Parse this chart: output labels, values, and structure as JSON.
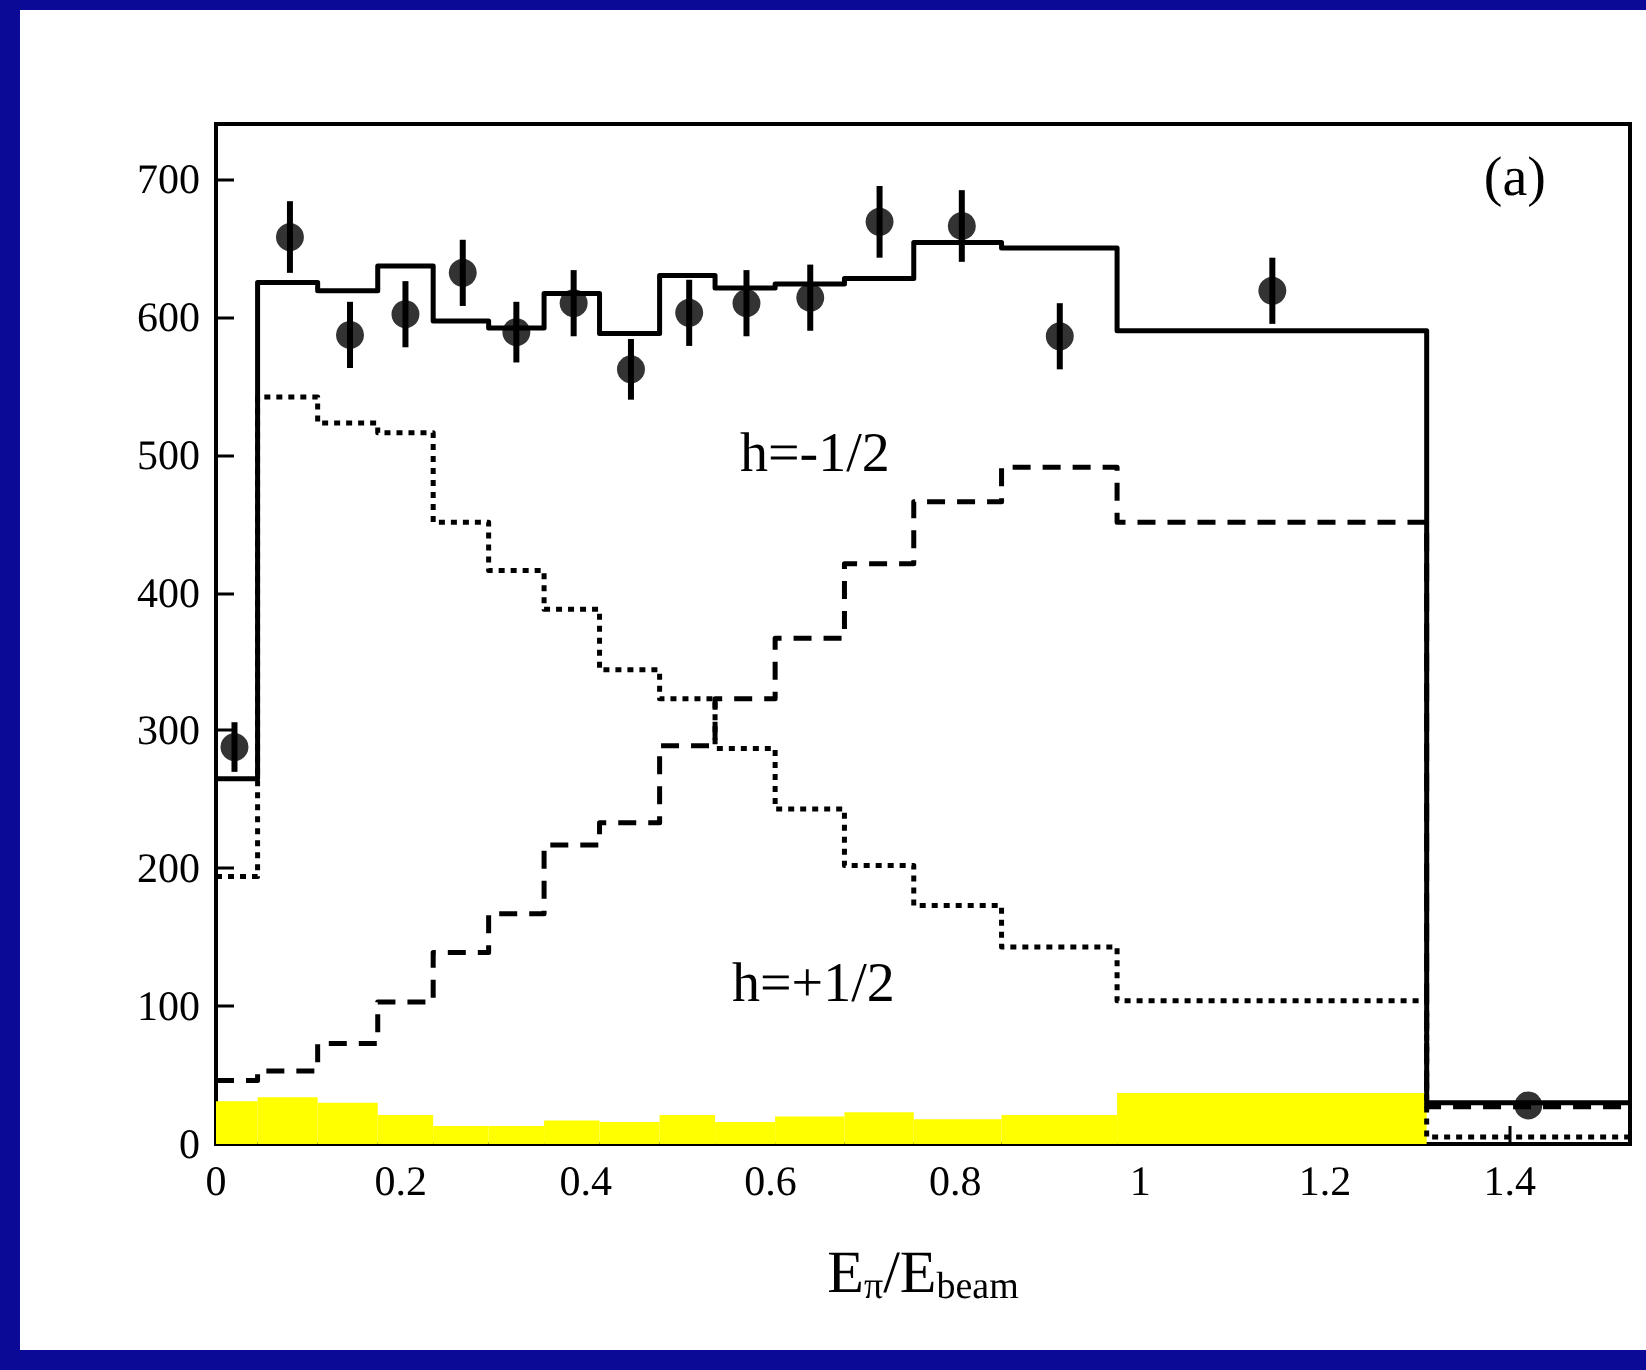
{
  "chart_data": {
    "type": "histogram",
    "xlabel": "E$_{π}$/E$_{beam}$",
    "bins": [
      0,
      0.045,
      0.11,
      0.175,
      0.235,
      0.295,
      0.355,
      0.415,
      0.48,
      0.54,
      0.605,
      0.68,
      0.755,
      0.85,
      0.975,
      1.31
    ],
    "series": [
      {
        "color": "#ffff00",
        "values": [
          31,
          34,
          30,
          21,
          13,
          13,
          17,
          16,
          21,
          16,
          20,
          23,
          18,
          21,
          37
        ]
      },
      {
        "type": "step",
        "color": "#000000",
        "line_style": "solid",
        "x": [
          0,
          0.045,
          0.11,
          0.175,
          0.235,
          0.295,
          0.355,
          0.415,
          0.48,
          0.54,
          0.605,
          0.68,
          0.755,
          0.85,
          0.975,
          1.31,
          1.53
        ],
        "values": [
          265,
          625,
          619,
          637,
          597,
          592,
          617,
          588,
          630,
          621,
          624,
          628,
          654,
          650,
          590,
          30,
          30
        ]
      },
      {
        "type": "step",
        "color": "#000000",
        "line_style": "dotted",
        "x": [
          0,
          0.045,
          0.11,
          0.175,
          0.235,
          0.295,
          0.355,
          0.415,
          0.48,
          0.54,
          0.605,
          0.68,
          0.755,
          0.85,
          0.975,
          1.31,
          1.53
        ],
        "values": [
          194,
          542,
          523,
          516,
          451,
          416,
          388,
          344,
          323,
          287,
          243,
          202,
          173,
          143,
          104,
          5,
          5
        ]
      },
      {
        "type": "step",
        "color": "#000000",
        "line_style": "dashed",
        "x": [
          0,
          0.045,
          0.11,
          0.175,
          0.235,
          0.295,
          0.355,
          0.415,
          0.48,
          0.54,
          0.605,
          0.68,
          0.755,
          0.85,
          0.975,
          1.31,
          1.53
        ],
        "values": [
          46,
          53,
          73,
          103,
          139,
          167,
          217,
          233,
          289,
          323,
          367,
          421,
          466,
          491,
          451,
          27,
          27
        ]
      },
      {
        "type": "scatter",
        "color": "#000000",
        "marker": "circle",
        "x": [
          0.02,
          0.08,
          0.145,
          0.205,
          0.267,
          0.325,
          0.387,
          0.449,
          0.512,
          0.574,
          0.643,
          0.718,
          0.807,
          0.913,
          1.143,
          1.42
        ],
        "values": [
          288,
          658,
          587,
          602,
          632,
          589,
          610,
          562,
          603,
          610,
          614,
          669,
          666,
          586,
          619,
          28
        ],
        "errors": [
          18,
          26,
          24,
          24,
          24,
          22,
          24,
          22,
          24,
          24,
          24,
          26,
          26,
          24,
          24,
          null
        ]
      }
    ],
    "xlim": [
      0,
      1.53
    ],
    "ylim": [
      0,
      740
    ],
    "xticks": [
      0,
      0.2,
      0.4,
      0.6,
      0.8,
      1,
      1.2,
      1.4
    ],
    "yticks": [
      0,
      100,
      200,
      300,
      400,
      500,
      600,
      700
    ],
    "annotations": [
      "(a)",
      "h=-1/2",
      "h=+1/2"
    ],
    "grid": false
  }
}
